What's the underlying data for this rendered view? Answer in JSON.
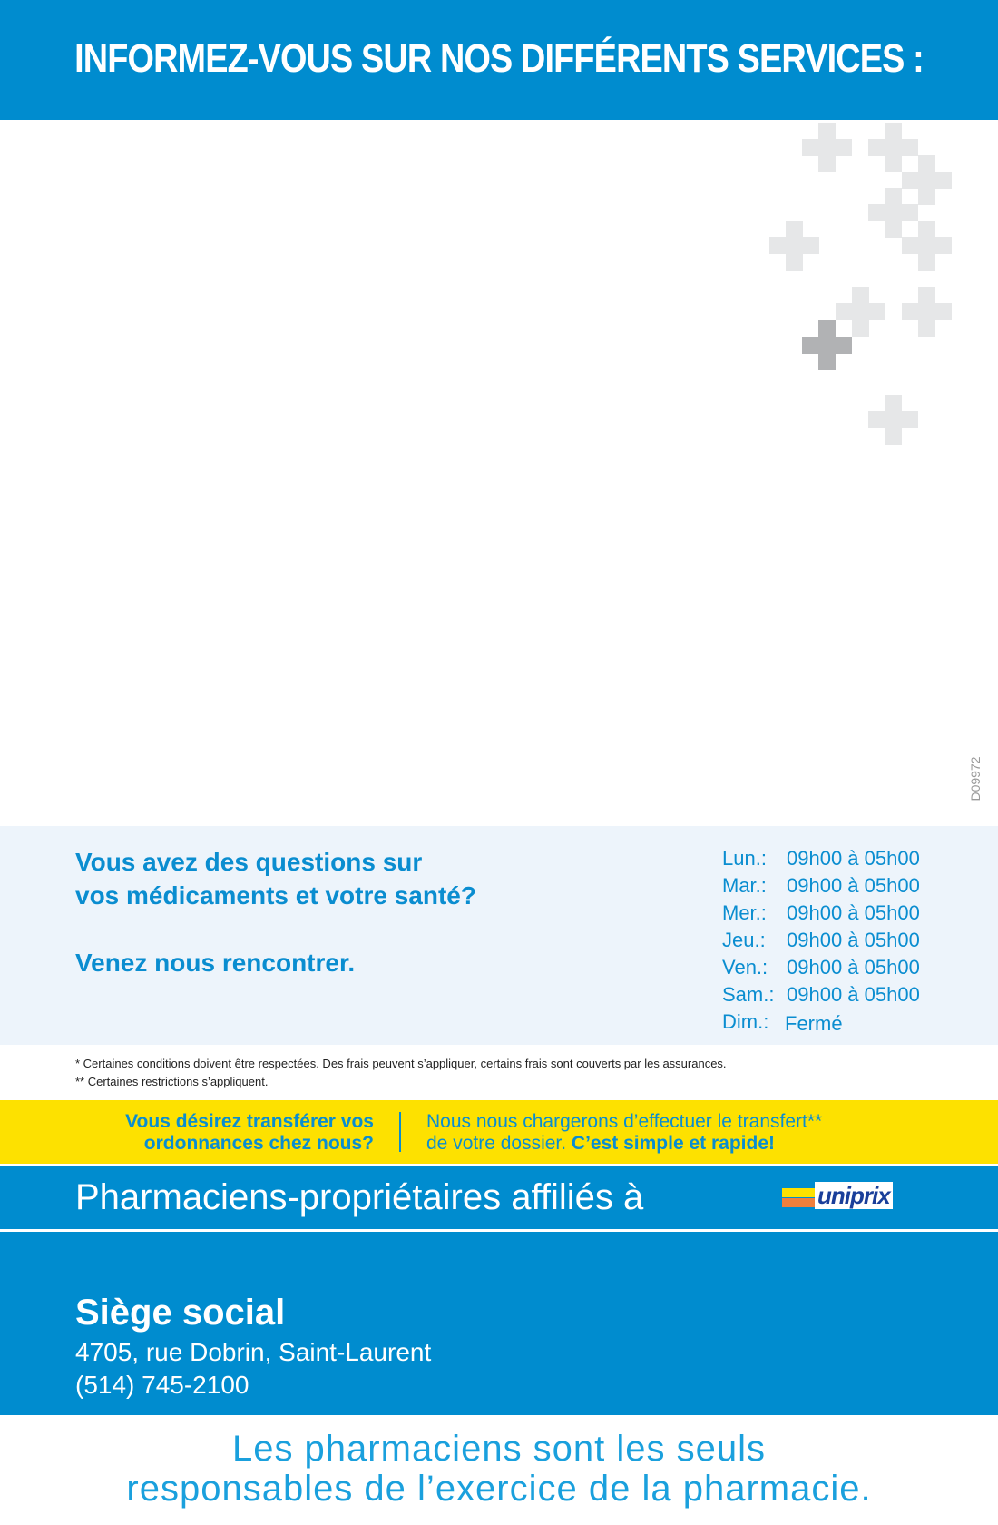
{
  "header": {
    "title": "INFORMEZ-VOUS SUR NOS DIFFÉRENTS SERVICES :"
  },
  "decoration": {
    "icon": "plus-cross-icon",
    "light_color": "#e6e7e8",
    "dark_color": "#b1b2b4",
    "code": "D09972"
  },
  "info": {
    "question_line1": "Vous avez des questions sur",
    "question_line2": "vos médicaments et votre santé?",
    "invite": "Venez nous rencontrer.",
    "hours": [
      {
        "day": "Lun.:",
        "time": "09h00 à 05h00"
      },
      {
        "day": "Mar.:",
        "time": "09h00 à 05h00"
      },
      {
        "day": "Mer.:",
        "time": "09h00 à 05h00"
      },
      {
        "day": "Jeu.:",
        "time": "09h00 à 05h00"
      },
      {
        "day": "Ven.:",
        "time": "09h00 à 05h00"
      },
      {
        "day": "Sam.:",
        "time": "09h00 à 05h00"
      },
      {
        "day": "Dim.:",
        "time": "Fermé"
      }
    ]
  },
  "footnotes": [
    "* Certaines conditions doivent être respectées. Des frais peuvent s’appliquer, certains frais sont couverts par les assurances.",
    "** Certaines restrictions s’appliquent."
  ],
  "transfer": {
    "question_line1": "Vous désirez transférer vos",
    "question_line2": "ordonnances chez nous?",
    "answer_line1": "Nous nous chargerons d’effectuer le transfert**",
    "answer_line2": "de votre dossier. ",
    "answer_emphasis": "C’est simple et rapide!"
  },
  "affiliation": {
    "text": "Pharmaciens-propriétaires affiliés à",
    "logo": "uniprix"
  },
  "head_office": {
    "title": "Siège social",
    "address": "4705, rue Dobrin, Saint-Laurent",
    "phone": "(514) 745-2100"
  },
  "tagline": {
    "line1": "Les pharmaciens sont les seuls",
    "line2": "responsables de l’exercice de la pharmacie."
  },
  "colors": {
    "brand_blue": "#008ccf",
    "text_blue": "#0a8dd0",
    "yellow": "#fde100",
    "light_bg": "#edf4fb"
  }
}
